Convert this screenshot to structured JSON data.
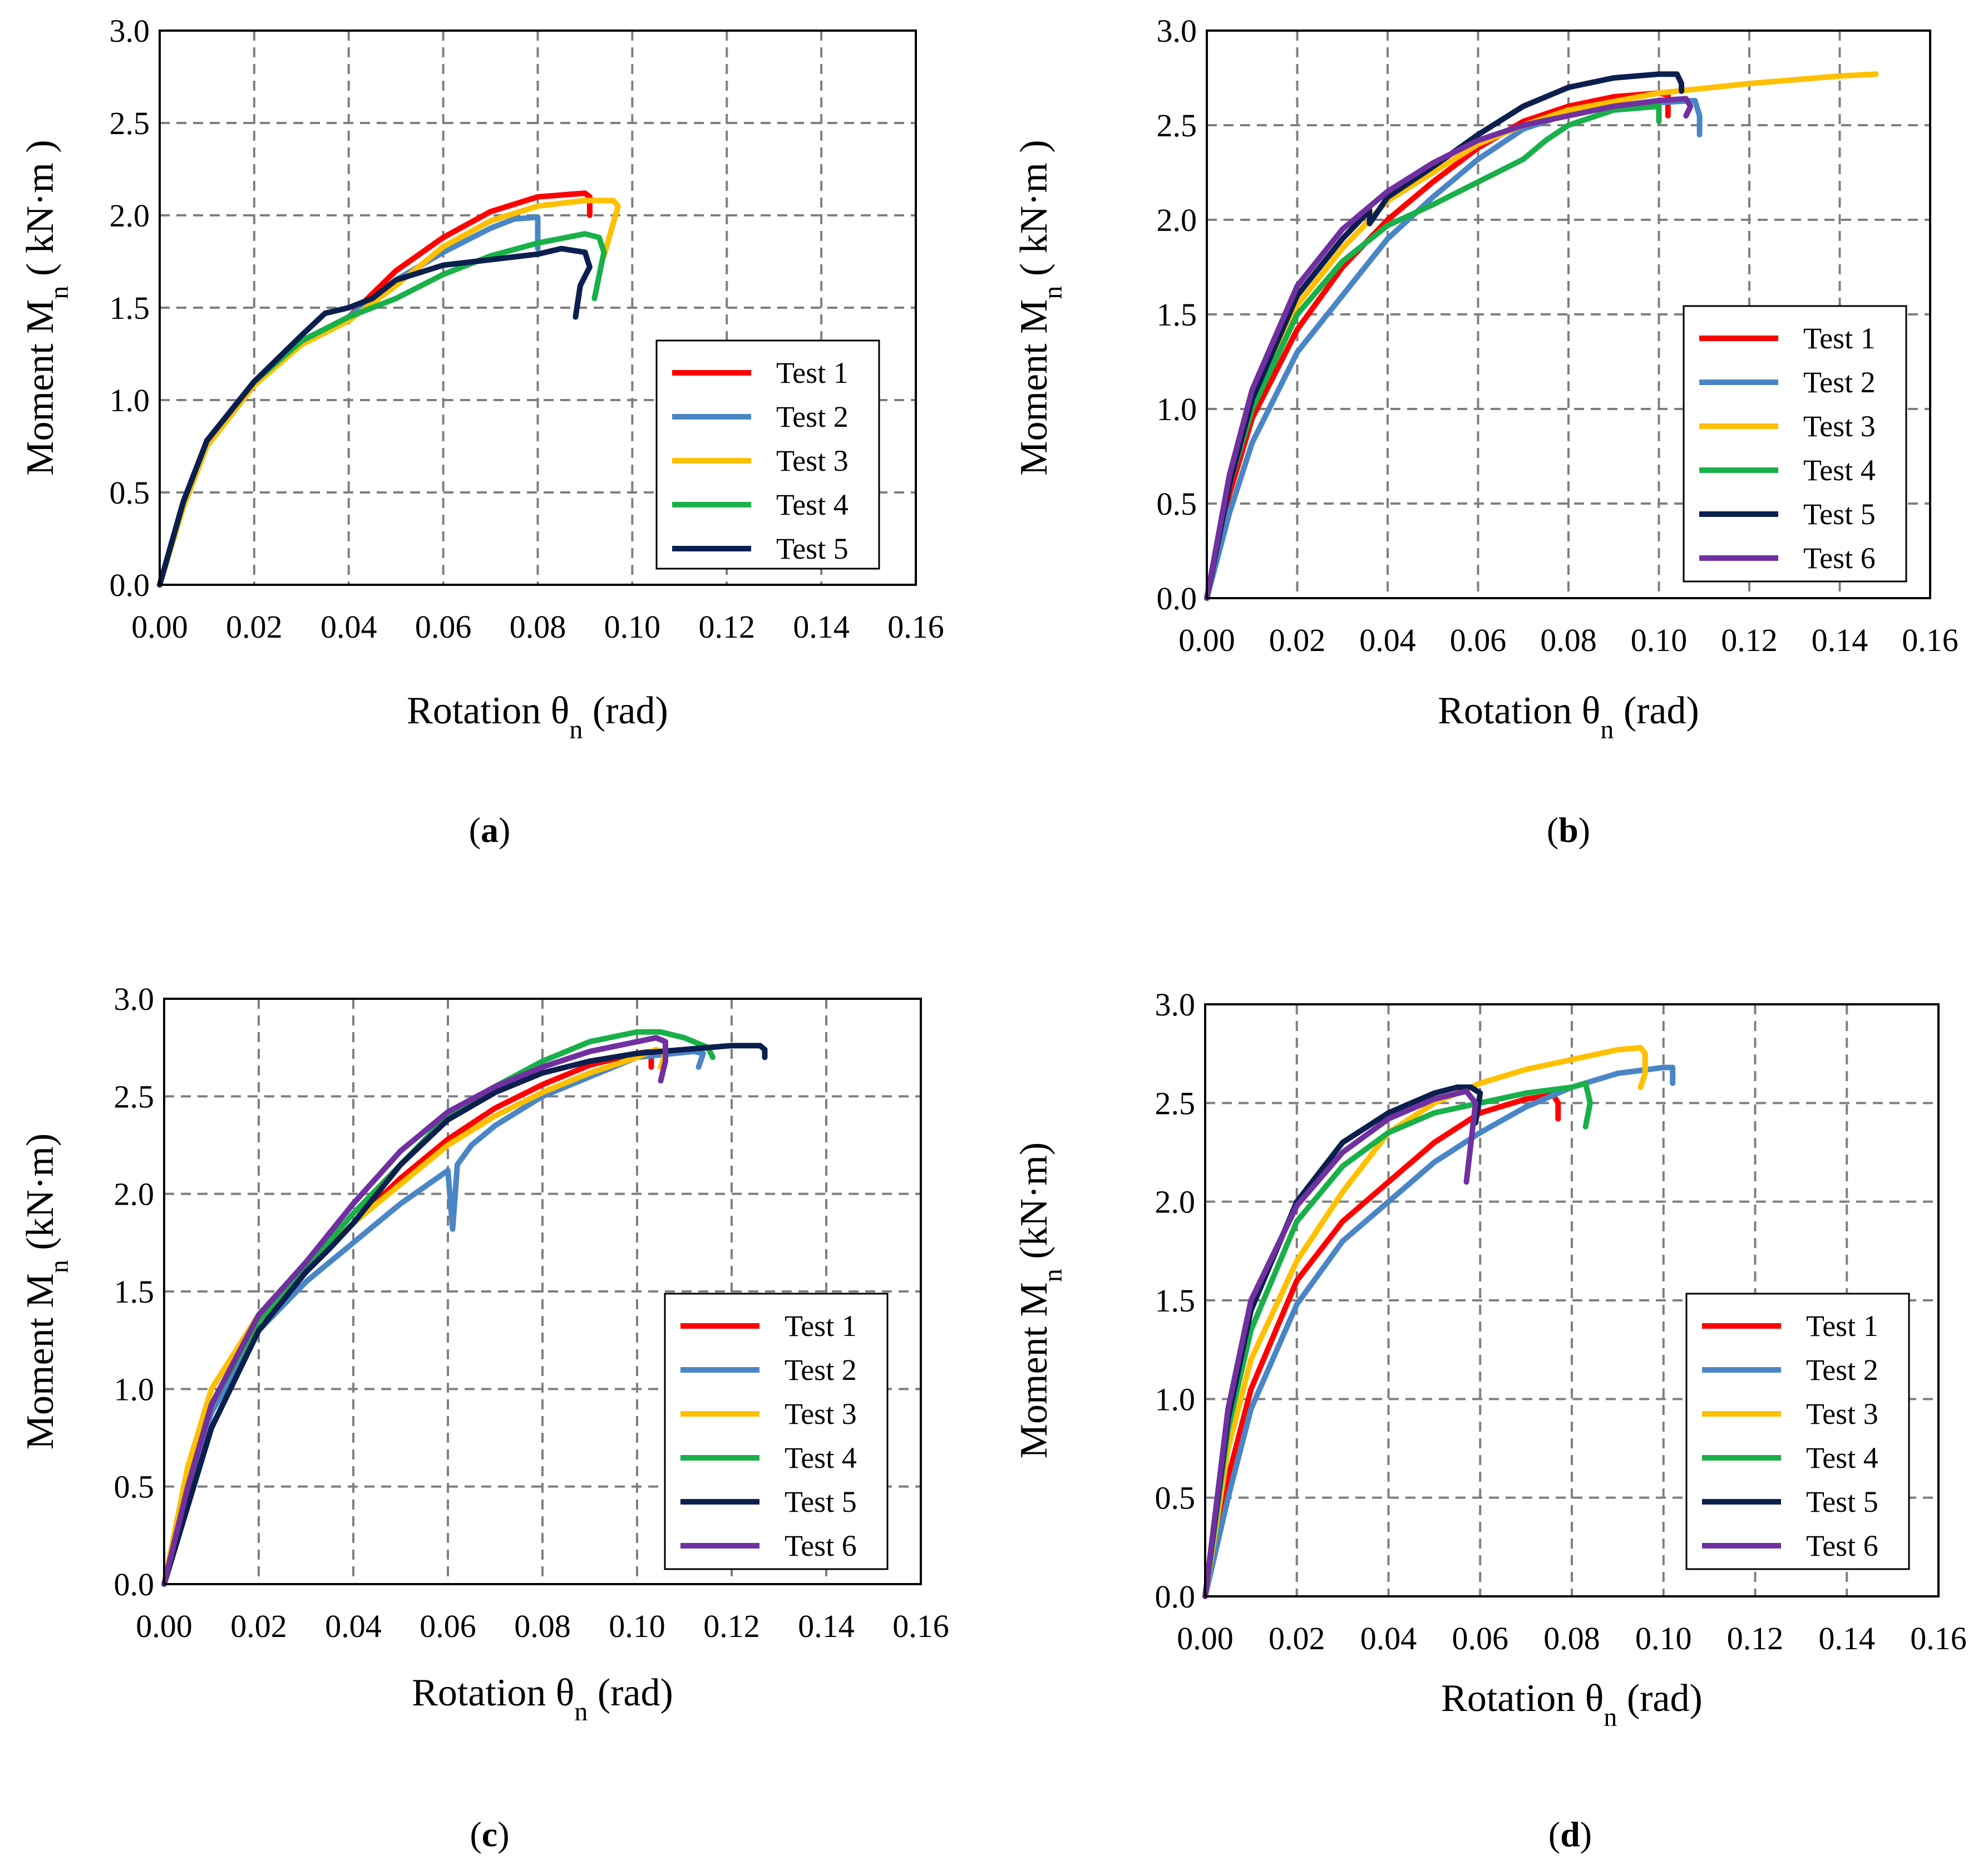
{
  "colors": {
    "Test 1": "#ff0000",
    "Test 2": "#4a86c6",
    "Test 3": "#ffc000",
    "Test 4": "#19b04a",
    "Test 5": "#0b1f4f",
    "Test 6": "#7030a0",
    "grid": "#7f7f7f"
  },
  "chart_data": [
    {
      "type": "line",
      "caption": "a",
      "xlabel": "Rotation θn (rad)",
      "ylabel": "Moment Mn ( kN·m )",
      "xlim": [
        0,
        0.16
      ],
      "ylim": [
        0,
        3.0
      ],
      "xticks": [
        "0.00",
        "0.02",
        "0.04",
        "0.06",
        "0.08",
        "0.10",
        "0.12",
        "0.14",
        "0.16"
      ],
      "yticks": [
        "0.0",
        "0.5",
        "1.0",
        "1.5",
        "2.0",
        "2.5",
        "3.0"
      ],
      "grid": true,
      "legend": "right-lower",
      "series": [
        {
          "name": "Test 1",
          "x": [
            0,
            0.005,
            0.01,
            0.02,
            0.03,
            0.04,
            0.05,
            0.06,
            0.07,
            0.08,
            0.09,
            0.091,
            0.091
          ],
          "y": [
            0,
            0.45,
            0.78,
            1.1,
            1.32,
            1.45,
            1.7,
            1.88,
            2.02,
            2.1,
            2.12,
            2.1,
            2.0
          ]
        },
        {
          "name": "Test 2",
          "x": [
            0,
            0.005,
            0.01,
            0.02,
            0.03,
            0.04,
            0.05,
            0.06,
            0.07,
            0.075,
            0.08,
            0.08,
            0.08
          ],
          "y": [
            0,
            0.45,
            0.78,
            1.1,
            1.32,
            1.45,
            1.65,
            1.8,
            1.93,
            1.98,
            1.99,
            1.95,
            1.82
          ]
        },
        {
          "name": "Test 3",
          "x": [
            0,
            0.005,
            0.01,
            0.02,
            0.03,
            0.04,
            0.05,
            0.06,
            0.07,
            0.08,
            0.09,
            0.096,
            0.097,
            0.094
          ],
          "y": [
            0,
            0.42,
            0.75,
            1.08,
            1.3,
            1.43,
            1.62,
            1.83,
            1.97,
            2.05,
            2.08,
            2.08,
            2.05,
            1.78
          ]
        },
        {
          "name": "Test 4",
          "x": [
            0,
            0.005,
            0.01,
            0.02,
            0.03,
            0.04,
            0.05,
            0.06,
            0.07,
            0.08,
            0.09,
            0.093,
            0.094,
            0.092
          ],
          "y": [
            0,
            0.45,
            0.78,
            1.1,
            1.32,
            1.45,
            1.55,
            1.68,
            1.78,
            1.85,
            1.9,
            1.88,
            1.8,
            1.55
          ]
        },
        {
          "name": "Test 5",
          "x": [
            0,
            0.005,
            0.01,
            0.02,
            0.03,
            0.035,
            0.04,
            0.045,
            0.05,
            0.06,
            0.07,
            0.08,
            0.085,
            0.09,
            0.091,
            0.089,
            0.088
          ],
          "y": [
            0,
            0.45,
            0.78,
            1.1,
            1.35,
            1.47,
            1.5,
            1.55,
            1.65,
            1.73,
            1.76,
            1.79,
            1.82,
            1.8,
            1.72,
            1.62,
            1.45
          ]
        }
      ]
    },
    {
      "type": "line",
      "caption": "b",
      "xlabel": "Rotation θn (rad)",
      "ylabel": "Moment Mn ( kN·m )",
      "xlim": [
        0,
        0.16
      ],
      "ylim": [
        0,
        3.0
      ],
      "xticks": [
        "0.00",
        "0.02",
        "0.04",
        "0.06",
        "0.08",
        "0.10",
        "0.12",
        "0.14",
        "0.16"
      ],
      "yticks": [
        "0.0",
        "0.5",
        "1.0",
        "1.5",
        "2.0",
        "2.5",
        "3.0"
      ],
      "grid": true,
      "legend": "right-lower",
      "series": [
        {
          "name": "Test 1",
          "x": [
            0,
            0.005,
            0.01,
            0.02,
            0.03,
            0.04,
            0.05,
            0.06,
            0.07,
            0.08,
            0.09,
            0.1,
            0.102,
            0.102
          ],
          "y": [
            0,
            0.55,
            0.95,
            1.42,
            1.75,
            2.0,
            2.2,
            2.38,
            2.52,
            2.6,
            2.65,
            2.67,
            2.66,
            2.55
          ]
        },
        {
          "name": "Test 2",
          "x": [
            0,
            0.005,
            0.01,
            0.02,
            0.03,
            0.04,
            0.05,
            0.06,
            0.07,
            0.08,
            0.09,
            0.1,
            0.108,
            0.109,
            0.109
          ],
          "y": [
            0,
            0.45,
            0.82,
            1.3,
            1.6,
            1.9,
            2.12,
            2.32,
            2.48,
            2.56,
            2.6,
            2.62,
            2.63,
            2.55,
            2.45
          ]
        },
        {
          "name": "Test 3",
          "x": [
            0,
            0.005,
            0.01,
            0.02,
            0.03,
            0.04,
            0.05,
            0.06,
            0.07,
            0.08,
            0.1,
            0.12,
            0.14,
            0.148
          ],
          "y": [
            0,
            0.6,
            1.0,
            1.55,
            1.85,
            2.1,
            2.25,
            2.4,
            2.5,
            2.58,
            2.67,
            2.72,
            2.76,
            2.77
          ]
        },
        {
          "name": "Test 4",
          "x": [
            0,
            0.005,
            0.01,
            0.02,
            0.03,
            0.04,
            0.05,
            0.06,
            0.07,
            0.075,
            0.08,
            0.09,
            0.1,
            0.1,
            0.1
          ],
          "y": [
            0,
            0.6,
            1.0,
            1.5,
            1.78,
            1.97,
            2.08,
            2.2,
            2.32,
            2.42,
            2.5,
            2.58,
            2.6,
            2.58,
            2.52
          ]
        },
        {
          "name": "Test 5",
          "x": [
            0,
            0.005,
            0.01,
            0.02,
            0.03,
            0.036,
            0.036,
            0.04,
            0.05,
            0.06,
            0.07,
            0.08,
            0.09,
            0.1,
            0.104,
            0.105,
            0.105
          ],
          "y": [
            0,
            0.6,
            1.05,
            1.6,
            1.9,
            2.05,
            1.98,
            2.12,
            2.28,
            2.45,
            2.6,
            2.7,
            2.75,
            2.77,
            2.77,
            2.72,
            2.68
          ]
        },
        {
          "name": "Test 6",
          "x": [
            0,
            0.005,
            0.01,
            0.02,
            0.03,
            0.04,
            0.05,
            0.06,
            0.07,
            0.08,
            0.09,
            0.1,
            0.106,
            0.107,
            0.106
          ],
          "y": [
            0,
            0.65,
            1.1,
            1.65,
            1.95,
            2.15,
            2.3,
            2.42,
            2.5,
            2.55,
            2.6,
            2.63,
            2.64,
            2.6,
            2.55
          ]
        }
      ]
    },
    {
      "type": "line",
      "caption": "c",
      "xlabel": "Rotation θn (rad)",
      "ylabel": "Moment  Mn (kN·m)",
      "xlim": [
        0,
        0.16
      ],
      "ylim": [
        0,
        3.0
      ],
      "xticks": [
        "0.00",
        "0.02",
        "0.04",
        "0.06",
        "0.08",
        "0.10",
        "0.12",
        "0.14",
        "0.16"
      ],
      "yticks": [
        "0.0",
        "0.5",
        "1.0",
        "1.5",
        "2.0",
        "2.5",
        "3.0"
      ],
      "grid": true,
      "legend": "right-lower",
      "series": [
        {
          "name": "Test 1",
          "x": [
            0,
            0.005,
            0.01,
            0.02,
            0.03,
            0.04,
            0.05,
            0.06,
            0.07,
            0.08,
            0.09,
            0.1,
            0.103,
            0.103
          ],
          "y": [
            0,
            0.5,
            0.92,
            1.35,
            1.6,
            1.85,
            2.08,
            2.28,
            2.44,
            2.56,
            2.66,
            2.72,
            2.73,
            2.65
          ]
        },
        {
          "name": "Test 2",
          "x": [
            0,
            0.005,
            0.01,
            0.02,
            0.03,
            0.04,
            0.05,
            0.06,
            0.061,
            0.062,
            0.065,
            0.07,
            0.08,
            0.09,
            0.1,
            0.112,
            0.114,
            0.113
          ],
          "y": [
            0,
            0.5,
            0.88,
            1.3,
            1.55,
            1.75,
            1.95,
            2.12,
            1.82,
            2.15,
            2.25,
            2.35,
            2.5,
            2.6,
            2.7,
            2.73,
            2.72,
            2.65
          ]
        },
        {
          "name": "Test 3",
          "x": [
            0,
            0.005,
            0.01,
            0.02,
            0.03,
            0.04,
            0.05,
            0.06,
            0.07,
            0.08,
            0.09,
            0.1,
            0.104,
            0.106,
            0.105
          ],
          "y": [
            0,
            0.6,
            1.0,
            1.38,
            1.6,
            1.85,
            2.05,
            2.25,
            2.4,
            2.52,
            2.62,
            2.7,
            2.74,
            2.72,
            2.65
          ]
        },
        {
          "name": "Test 4",
          "x": [
            0,
            0.005,
            0.01,
            0.02,
            0.03,
            0.04,
            0.05,
            0.06,
            0.07,
            0.08,
            0.09,
            0.1,
            0.105,
            0.11,
            0.115,
            0.116
          ],
          "y": [
            0,
            0.5,
            0.92,
            1.35,
            1.62,
            1.9,
            2.15,
            2.4,
            2.55,
            2.68,
            2.78,
            2.83,
            2.83,
            2.8,
            2.75,
            2.7
          ]
        },
        {
          "name": "Test 5",
          "x": [
            0,
            0.005,
            0.01,
            0.02,
            0.03,
            0.035,
            0.04,
            0.05,
            0.06,
            0.07,
            0.08,
            0.09,
            0.1,
            0.11,
            0.12,
            0.126,
            0.127,
            0.127
          ],
          "y": [
            0,
            0.4,
            0.8,
            1.3,
            1.6,
            1.72,
            1.85,
            2.15,
            2.38,
            2.52,
            2.62,
            2.68,
            2.72,
            2.74,
            2.76,
            2.76,
            2.74,
            2.7
          ]
        },
        {
          "name": "Test 6",
          "x": [
            0,
            0.005,
            0.01,
            0.02,
            0.03,
            0.04,
            0.05,
            0.06,
            0.07,
            0.08,
            0.09,
            0.1,
            0.104,
            0.106,
            0.106,
            0.105
          ],
          "y": [
            0,
            0.5,
            0.92,
            1.38,
            1.65,
            1.95,
            2.22,
            2.42,
            2.55,
            2.65,
            2.73,
            2.78,
            2.8,
            2.78,
            2.68,
            2.58
          ]
        }
      ]
    },
    {
      "type": "line",
      "caption": "d",
      "xlabel": "Rotation θn (rad)",
      "ylabel": "Moment  Mn (kN·m)",
      "xlim": [
        0,
        0.16
      ],
      "ylim": [
        0,
        3.0
      ],
      "xticks": [
        "0.00",
        "0.02",
        "0.04",
        "0.06",
        "0.08",
        "0.10",
        "0.12",
        "0.14",
        "0.16"
      ],
      "yticks": [
        "0.0",
        "0.5",
        "1.0",
        "1.5",
        "2.0",
        "2.5",
        "3.0"
      ],
      "grid": true,
      "legend": "right-lower",
      "series": [
        {
          "name": "Test 1",
          "x": [
            0,
            0.005,
            0.01,
            0.02,
            0.03,
            0.04,
            0.05,
            0.06,
            0.07,
            0.076,
            0.077,
            0.077
          ],
          "y": [
            0,
            0.6,
            1.05,
            1.6,
            1.9,
            2.1,
            2.3,
            2.45,
            2.52,
            2.54,
            2.5,
            2.42
          ]
        },
        {
          "name": "Test 2",
          "x": [
            0,
            0.005,
            0.01,
            0.02,
            0.03,
            0.04,
            0.05,
            0.06,
            0.07,
            0.08,
            0.09,
            0.1,
            0.102,
            0.102
          ],
          "y": [
            0,
            0.5,
            0.95,
            1.48,
            1.8,
            2.0,
            2.2,
            2.35,
            2.48,
            2.58,
            2.65,
            2.68,
            2.68,
            2.6
          ]
        },
        {
          "name": "Test 3",
          "x": [
            0,
            0.005,
            0.01,
            0.02,
            0.03,
            0.04,
            0.05,
            0.06,
            0.07,
            0.08,
            0.09,
            0.095,
            0.096,
            0.096,
            0.095
          ],
          "y": [
            0,
            0.75,
            1.2,
            1.7,
            2.05,
            2.35,
            2.5,
            2.6,
            2.67,
            2.72,
            2.77,
            2.78,
            2.75,
            2.65,
            2.58
          ]
        },
        {
          "name": "Test 4",
          "x": [
            0,
            0.005,
            0.01,
            0.02,
            0.03,
            0.04,
            0.05,
            0.06,
            0.07,
            0.08,
            0.083,
            0.084,
            0.083
          ],
          "y": [
            0,
            0.85,
            1.35,
            1.9,
            2.18,
            2.35,
            2.45,
            2.5,
            2.55,
            2.58,
            2.6,
            2.5,
            2.38
          ]
        },
        {
          "name": "Test 5",
          "x": [
            0,
            0.005,
            0.01,
            0.02,
            0.03,
            0.04,
            0.05,
            0.055,
            0.058,
            0.06,
            0.059
          ],
          "y": [
            0,
            0.9,
            1.45,
            2.0,
            2.3,
            2.45,
            2.55,
            2.58,
            2.58,
            2.55,
            2.4
          ]
        },
        {
          "name": "Test 6",
          "x": [
            0,
            0.005,
            0.01,
            0.02,
            0.03,
            0.04,
            0.05,
            0.057,
            0.059,
            0.058,
            0.057
          ],
          "y": [
            0,
            0.95,
            1.5,
            1.98,
            2.25,
            2.42,
            2.52,
            2.56,
            2.5,
            2.3,
            2.1
          ]
        }
      ]
    }
  ]
}
